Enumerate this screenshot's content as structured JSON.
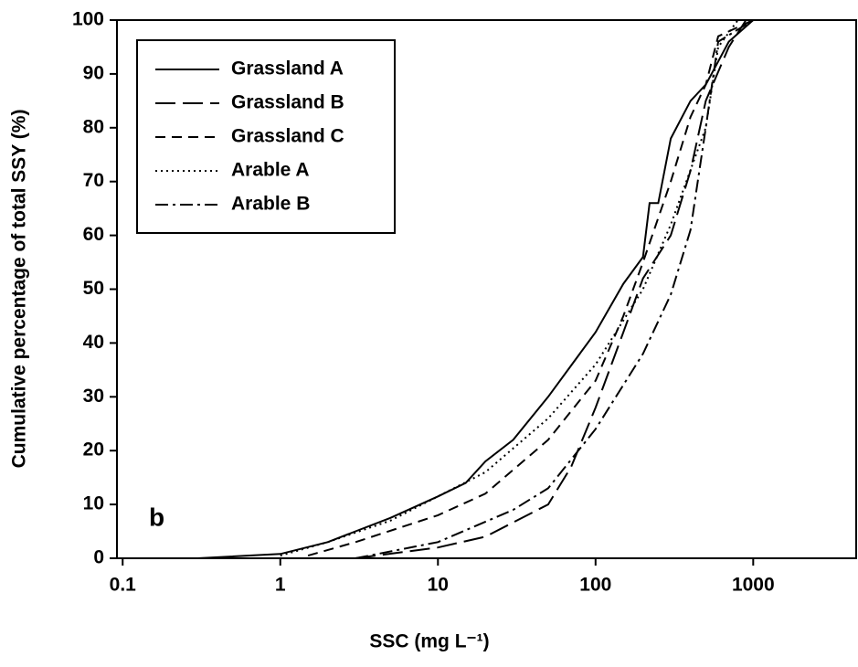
{
  "chart_data": {
    "type": "line",
    "xlabel": "SSC (mg L⁻¹)",
    "ylabel": "Cumulative percentage of total SSY (%)",
    "annotation": "b",
    "xscale": "log",
    "xlim": [
      0.092,
      4500
    ],
    "ylim": [
      0,
      100
    ],
    "xticks": [
      0.1,
      1,
      10,
      100,
      1000
    ],
    "yticks": [
      0,
      10,
      20,
      30,
      40,
      50,
      60,
      70,
      80,
      90,
      100
    ],
    "legend": "upper left",
    "series": [
      {
        "name": "Grassland A",
        "color": "#000000",
        "dash": "solid",
        "x": [
          0.3,
          1,
          2,
          3,
          5,
          10,
          15,
          20,
          30,
          50,
          100,
          150,
          200,
          220,
          250,
          300,
          400,
          500,
          700,
          1000,
          2000
        ],
        "values": [
          0,
          0.8,
          3,
          5,
          7.5,
          11.5,
          14,
          18,
          22,
          30,
          42,
          51,
          56,
          66,
          66,
          78,
          85,
          88,
          96,
          100,
          100
        ]
      },
      {
        "name": "Grassland B",
        "color": "#000000",
        "dash": "long",
        "x": [
          3,
          10,
          20,
          50,
          70,
          100,
          150,
          200,
          300,
          400,
          500,
          700,
          900
        ],
        "values": [
          0,
          2,
          4,
          10,
          17,
          28,
          42,
          52,
          60,
          72,
          85,
          95,
          100
        ]
      },
      {
        "name": "Grassland C",
        "color": "#000000",
        "dash": "short",
        "x": [
          1.5,
          3,
          10,
          20,
          50,
          100,
          150,
          200,
          300,
          400,
          500,
          600,
          1000
        ],
        "values": [
          0.5,
          3,
          8,
          12,
          22,
          33,
          45,
          55,
          70,
          82,
          88,
          97,
          100
        ]
      },
      {
        "name": "Arable A",
        "color": "#000000",
        "dash": "dotted",
        "x": [
          1,
          2,
          5,
          10,
          20,
          50,
          100,
          200,
          300,
          500,
          600,
          800
        ],
        "values": [
          0.5,
          3,
          7,
          11.5,
          16,
          26,
          36,
          50,
          62,
          80,
          95,
          100
        ]
      },
      {
        "name": "Arable B",
        "color": "#000000",
        "dash": "dashdot",
        "x": [
          3,
          10,
          30,
          50,
          100,
          200,
          300,
          400,
          500,
          600,
          1000
        ],
        "values": [
          0,
          3,
          9,
          13,
          24,
          38,
          49,
          61,
          80,
          96,
          100
        ]
      }
    ]
  }
}
